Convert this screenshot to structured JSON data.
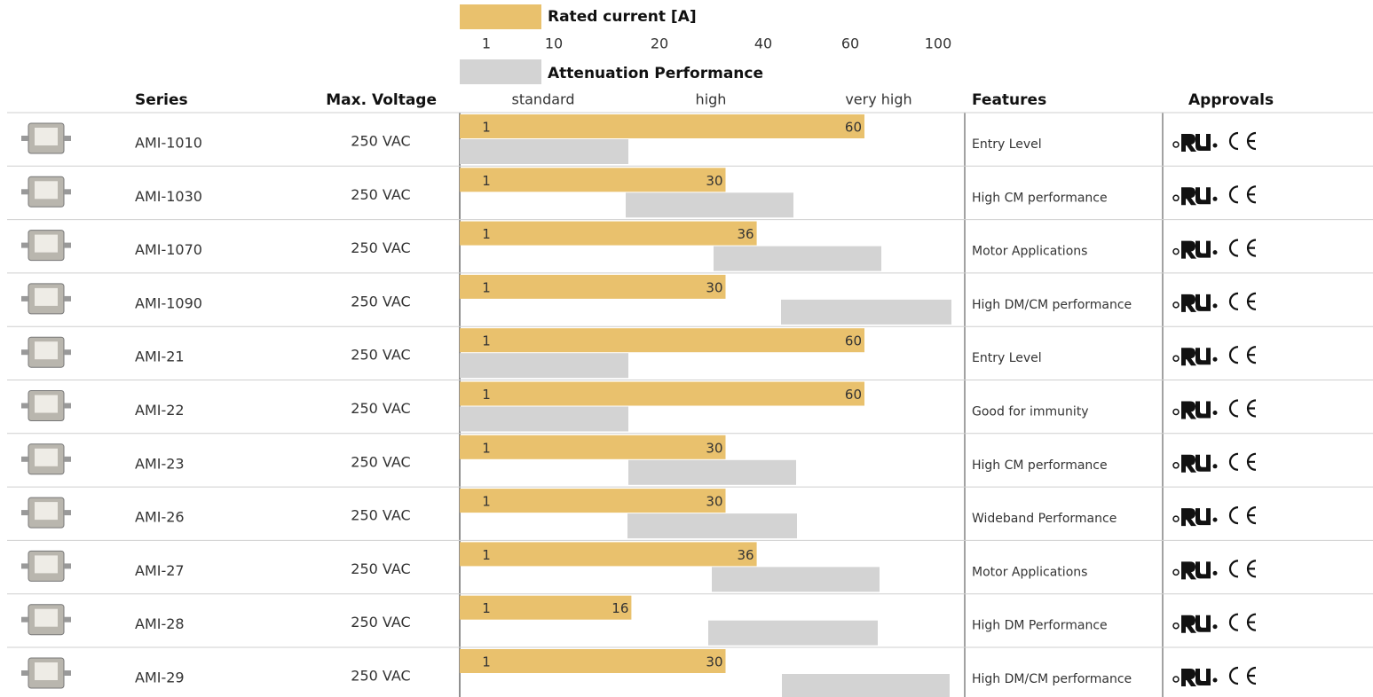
{
  "legend": {
    "rated_current": "Rated current [A]",
    "attenuation": "Attenuation Performance"
  },
  "rated_current_ticks": [
    1,
    10,
    20,
    40,
    60,
    100
  ],
  "attenuation_levels": [
    "standard",
    "high",
    "very high"
  ],
  "columns": {
    "series": "Series",
    "max_voltage": "Max. Voltage",
    "features": "Features",
    "approvals": "Approvals"
  },
  "rows": [
    {
      "series": "AMI-1010",
      "max_voltage": "250 VAC",
      "current_min": 1,
      "current_max": 60,
      "features": "Entry Level"
    },
    {
      "series": "AMI-1030",
      "max_voltage": "250 VAC",
      "current_min": 1,
      "current_max": 30,
      "features": "High CM performance"
    },
    {
      "series": "AMI-1070",
      "max_voltage": "250 VAC",
      "current_min": 1,
      "current_max": 36,
      "features": "Motor Applications"
    },
    {
      "series": "AMI-1090",
      "max_voltage": "250 VAC",
      "current_min": 1,
      "current_max": 30,
      "features": "High DM/CM performance"
    },
    {
      "series": "AMI-21",
      "max_voltage": "250 VAC",
      "current_min": 1,
      "current_max": 60,
      "features": "Entry Level"
    },
    {
      "series": "AMI-22",
      "max_voltage": "250 VAC",
      "current_min": 1,
      "current_max": 60,
      "features": "Good for immunity"
    },
    {
      "series": "AMI-23",
      "max_voltage": "250 VAC",
      "current_min": 1,
      "current_max": 30,
      "features": "High CM performance"
    },
    {
      "series": "AMI-26",
      "max_voltage": "250 VAC",
      "current_min": 1,
      "current_max": 30,
      "features": "Wideband Performance"
    },
    {
      "series": "AMI-27",
      "max_voltage": "250 VAC",
      "current_min": 1,
      "current_max": 36,
      "features": "Motor Applications"
    },
    {
      "series": "AMI-28",
      "max_voltage": "250 VAC",
      "current_min": 1,
      "current_max": 16,
      "features": "High DM Performance"
    },
    {
      "series": "AMI-29",
      "max_voltage": "250 VAC",
      "current_min": 1,
      "current_max": 30,
      "features": "High DM/CM performance"
    }
  ]
}
